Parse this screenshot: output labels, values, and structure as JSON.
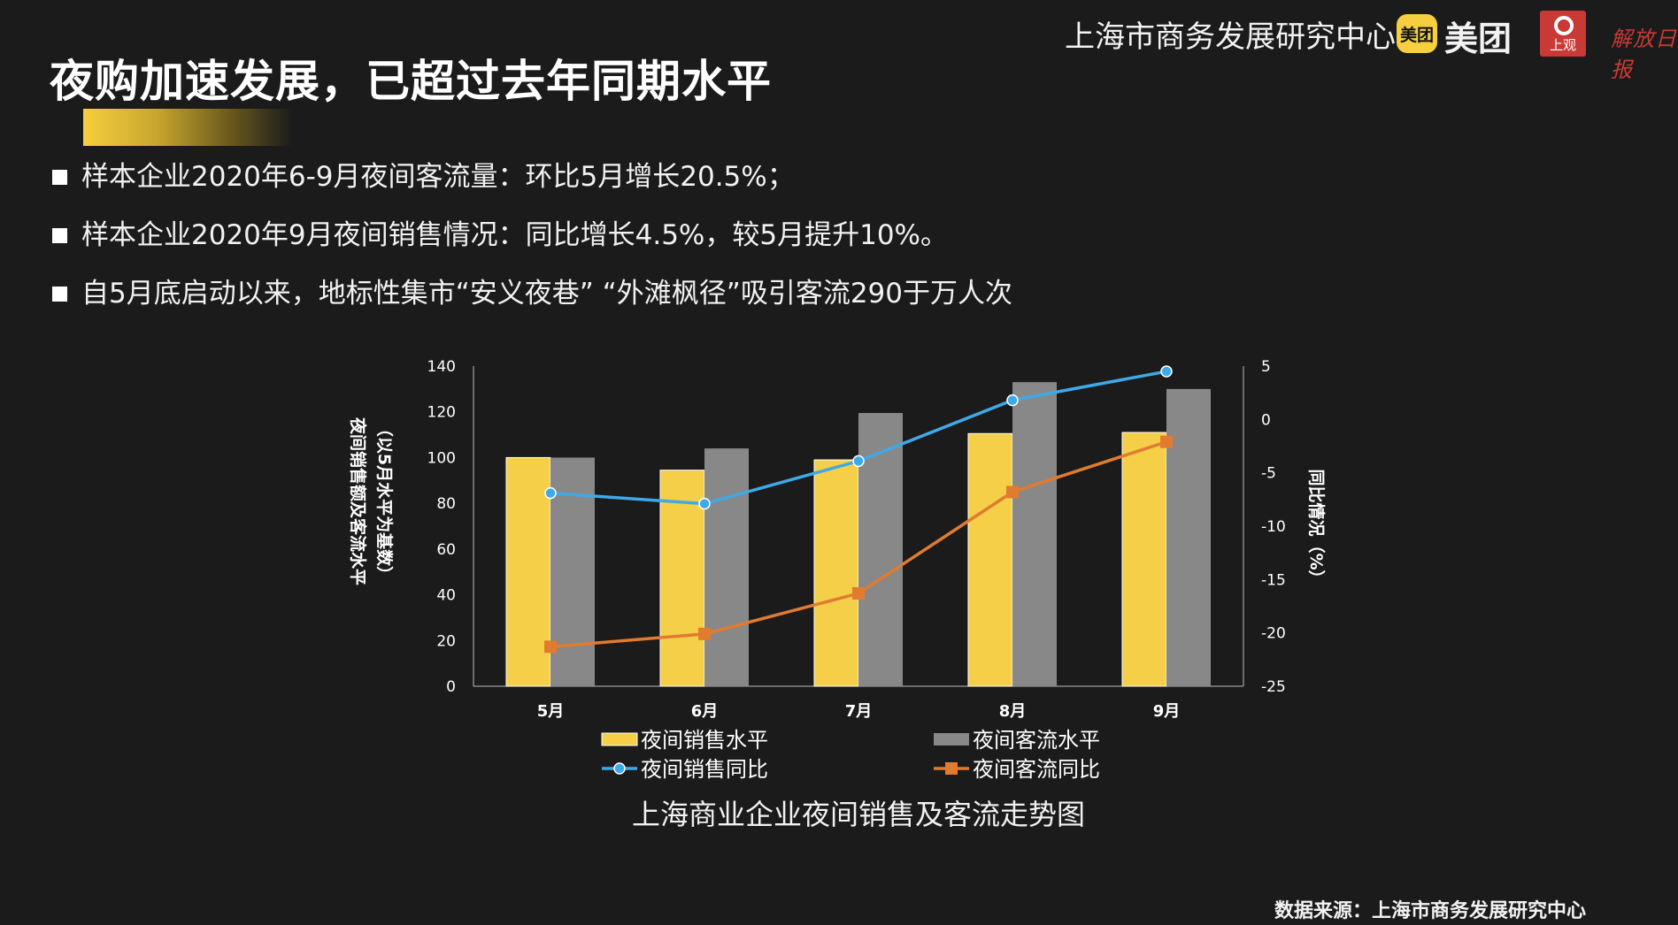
{
  "page": {
    "title": "夜购加速发展，已超过去年同期水平",
    "header_org": "上海市商务发展研究中心",
    "meituan_badge": "美团",
    "meituan_text": "美团",
    "shangguan_logo_text": "上观",
    "jiefang_logo_text": "解放日报",
    "bullets": [
      "样本企业2020年6-9月夜间客流量：环比5月增长20.5%；",
      "样本企业2020年9月夜间销售情况：同比增长4.5%，较5月提升10%。",
      "自5月底启动以来，地标性集市“安义夜巷” “外滩枫径”吸引客流290于万人次"
    ],
    "source": "数据来源：上海市商务发展研究中心"
  },
  "colors": {
    "background": "#1b1b1b",
    "sales_level": "#f5cf47",
    "traffic_level": "#888888",
    "sales_yoy": "#3fa9e8",
    "traffic_yoy": "#e07b30",
    "axis": "#bbbbbb"
  },
  "chart_data": {
    "type": "bar",
    "title": "上海商业企业夜间销售及客流走势图",
    "categories": [
      "5月",
      "6月",
      "7月",
      "8月",
      "9月"
    ],
    "ylabel_left": [
      "夜间销售额及客流水平",
      "（以5月水平为基数）"
    ],
    "ylabel_right": "同比情况（%）",
    "ylim_left": [
      0,
      140
    ],
    "yticks_left": [
      0,
      20,
      40,
      60,
      80,
      100,
      120,
      140
    ],
    "ylim_right": [
      -25,
      5
    ],
    "yticks_right": [
      5,
      0,
      -5,
      -10,
      -15,
      -20,
      -25
    ],
    "legend_position": "bottom",
    "series": [
      {
        "name": "夜间销售水平",
        "kind": "bar",
        "axis": "left",
        "values": [
          100,
          94.5,
          99,
          110.5,
          111
        ]
      },
      {
        "name": "夜间客流水平",
        "kind": "bar",
        "axis": "left",
        "values": [
          100,
          104,
          119.5,
          133,
          130
        ]
      },
      {
        "name": "夜间销售同比",
        "kind": "line",
        "marker": "circle",
        "axis": "right",
        "values": [
          -6.9,
          -7.9,
          -3.9,
          1.8,
          4.5
        ]
      },
      {
        "name": "夜间客流同比",
        "kind": "line",
        "marker": "square",
        "axis": "right",
        "values": [
          -21.3,
          -20.1,
          -16.3,
          -6.8,
          -2.1
        ]
      }
    ]
  }
}
